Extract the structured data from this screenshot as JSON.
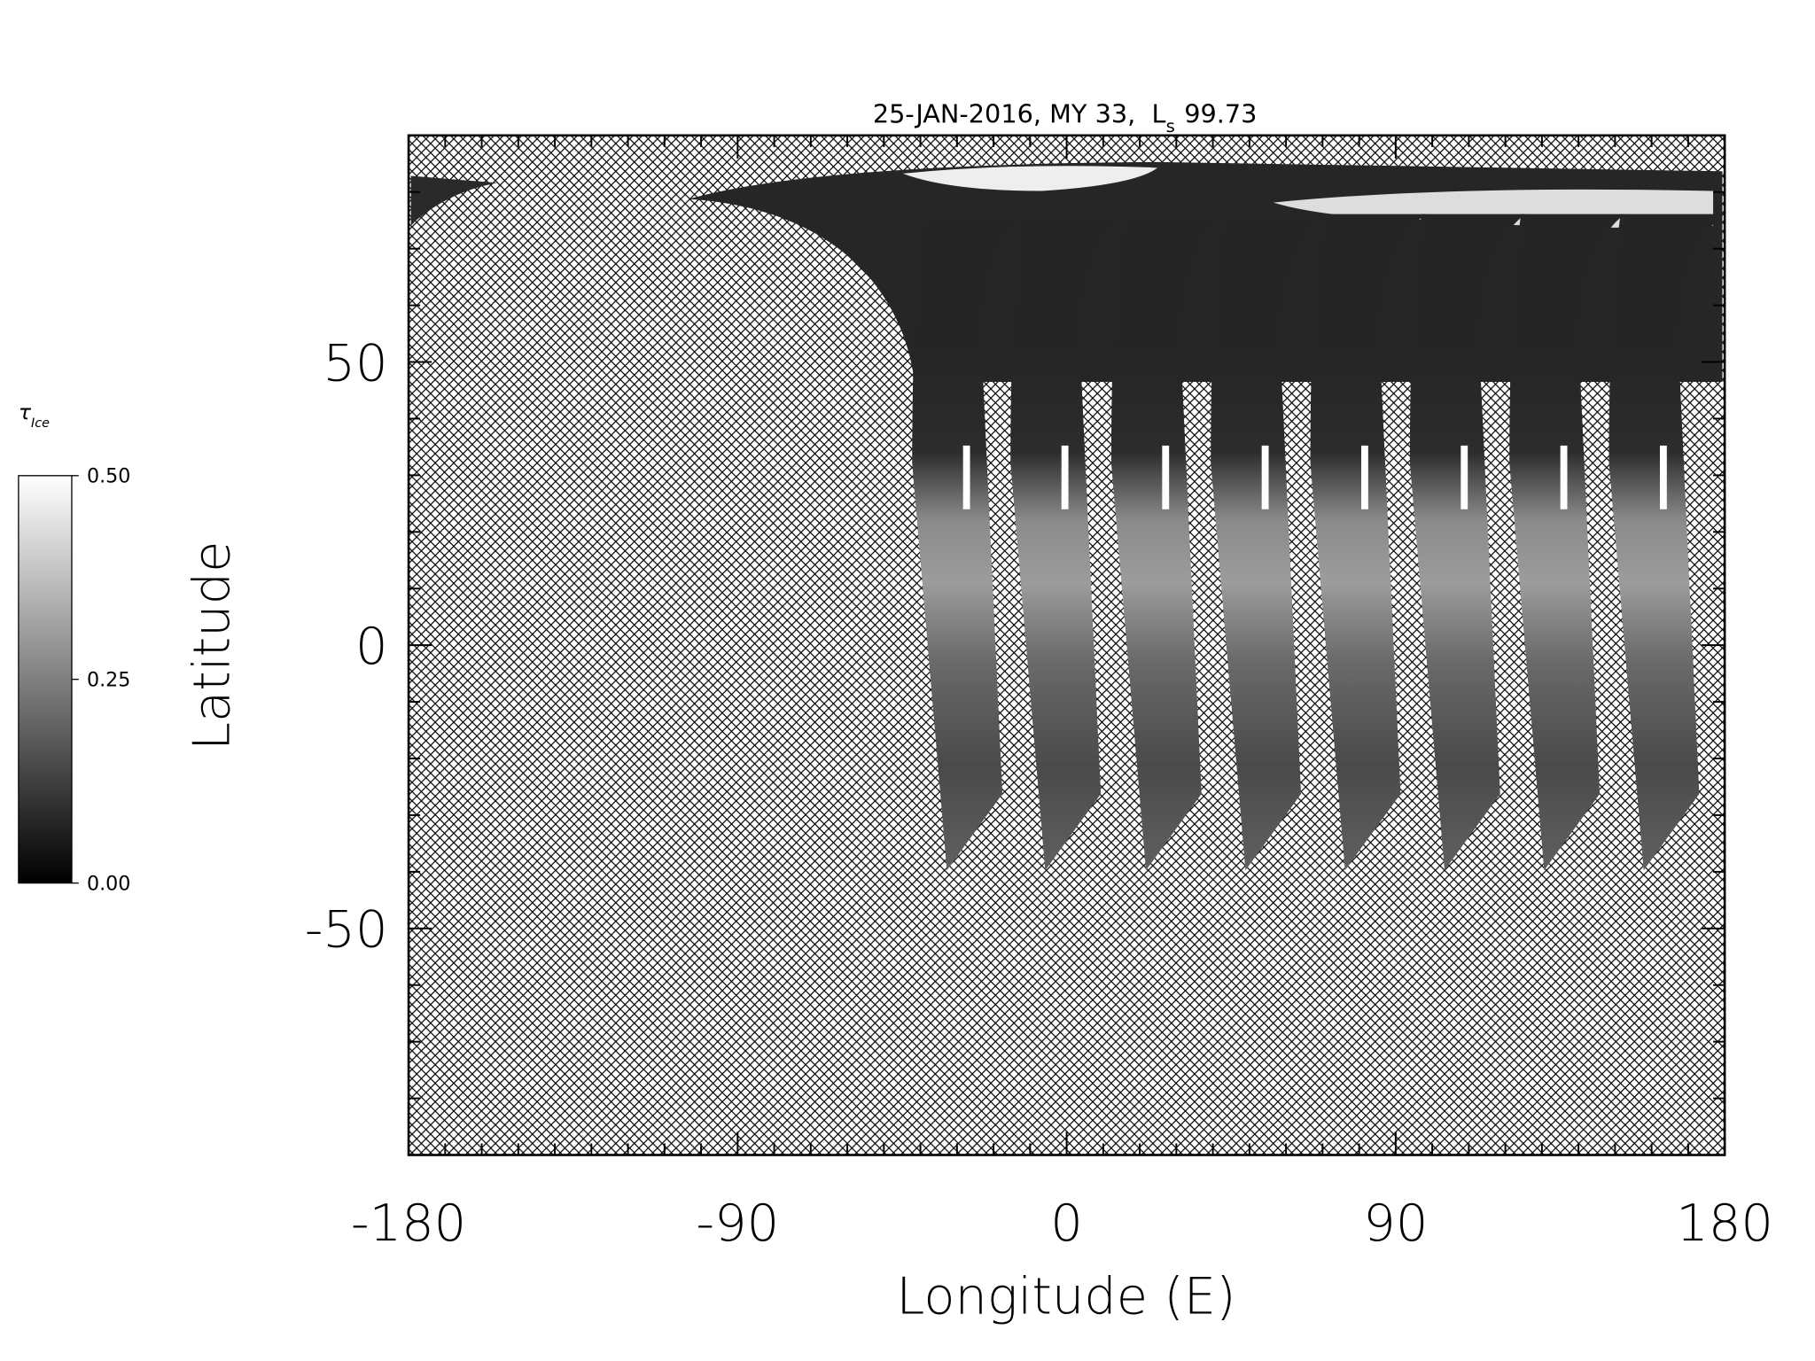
{
  "chart_data": {
    "type": "map",
    "title": {
      "date_line": "25-JAN-2016, MY 33,",
      "ls_symbol": "L",
      "ls_subscript": "s",
      "ls_value": "99.73"
    },
    "x_label": "Longitude (E)",
    "y_label": "Latitude",
    "xlim": [
      -180,
      180
    ],
    "ylim": [
      -90,
      90
    ],
    "xticks": [
      -180,
      -90,
      0,
      90,
      180
    ],
    "yticks": [
      -50,
      0,
      50
    ],
    "xminorticks": [
      -170,
      -160,
      -150,
      -140,
      -130,
      -120,
      -110,
      -100,
      -80,
      -70,
      -60,
      -50,
      -40,
      -30,
      -20,
      -10,
      10,
      20,
      30,
      40,
      50,
      60,
      70,
      80,
      100,
      110,
      120,
      130,
      140,
      150,
      160,
      170
    ],
    "yminorticks": [
      -80,
      -70,
      -60,
      -40,
      -30,
      -20,
      -10,
      10,
      20,
      30,
      40,
      60,
      70,
      80
    ],
    "colorbar": {
      "symbol": "τ",
      "subscript": "Ice",
      "lim": [
        0,
        0.5
      ],
      "ticks": [
        {
          "value": 0,
          "label": "0.00"
        },
        {
          "value": 0.25,
          "label": "0.25"
        },
        {
          "value": 0.5,
          "label": "0.50"
        }
      ]
    }
  }
}
